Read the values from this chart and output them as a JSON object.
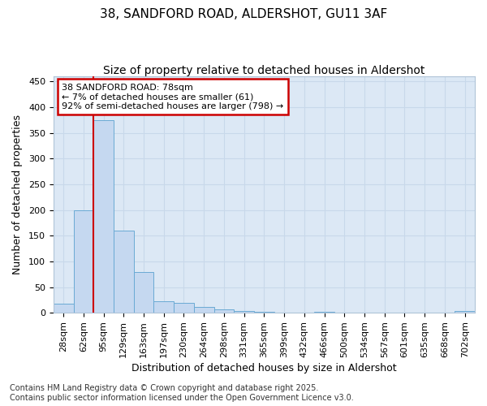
{
  "title_line1": "38, SANDFORD ROAD, ALDERSHOT, GU11 3AF",
  "title_line2": "Size of property relative to detached houses in Aldershot",
  "xlabel": "Distribution of detached houses by size in Aldershot",
  "ylabel": "Number of detached properties",
  "categories": [
    "28sqm",
    "62sqm",
    "95sqm",
    "129sqm",
    "163sqm",
    "197sqm",
    "230sqm",
    "264sqm",
    "298sqm",
    "331sqm",
    "365sqm",
    "399sqm",
    "432sqm",
    "466sqm",
    "500sqm",
    "534sqm",
    "567sqm",
    "601sqm",
    "635sqm",
    "668sqm",
    "702sqm"
  ],
  "values": [
    17,
    200,
    375,
    160,
    80,
    22,
    20,
    12,
    7,
    4,
    2,
    0,
    0,
    2,
    0,
    0,
    0,
    0,
    0,
    0,
    3
  ],
  "bar_color": "#c5d8f0",
  "bar_edge_color": "#6aaad4",
  "vline_color": "#cc0000",
  "vline_x": 1.5,
  "annotation_line1": "38 SANDFORD ROAD: 78sqm",
  "annotation_line2": "← 7% of detached houses are smaller (61)",
  "annotation_line3": "92% of semi-detached houses are larger (798) →",
  "annotation_box_color": "#ffffff",
  "annotation_box_edge": "#cc0000",
  "ylim": [
    0,
    460
  ],
  "yticks": [
    0,
    50,
    100,
    150,
    200,
    250,
    300,
    350,
    400,
    450
  ],
  "grid_color": "#c8d8ea",
  "plot_bg_color": "#dce8f5",
  "fig_bg_color": "#ffffff",
  "footer_line1": "Contains HM Land Registry data © Crown copyright and database right 2025.",
  "footer_line2": "Contains public sector information licensed under the Open Government Licence v3.0.",
  "title1_fontsize": 11,
  "title2_fontsize": 10,
  "axis_label_fontsize": 9,
  "tick_fontsize": 8,
  "annotation_fontsize": 8,
  "footer_fontsize": 7
}
